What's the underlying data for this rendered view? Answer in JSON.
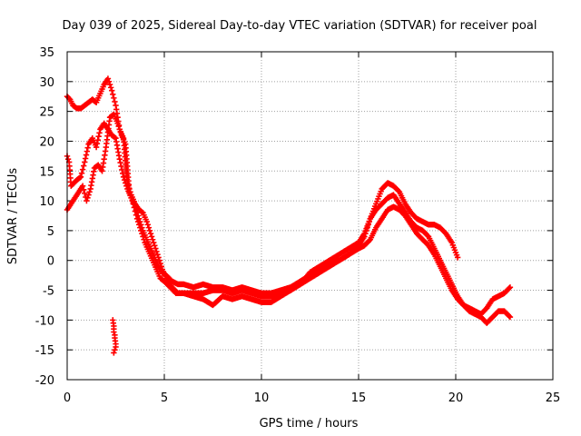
{
  "chart_data": {
    "type": "scatter",
    "title": "Day 039 of 2025, Sidereal Day-to-day VTEC variation (SDTVAR) for receiver poal",
    "xlabel": "GPS time / hours",
    "ylabel": "SDTVAR / TECUs",
    "xlim": [
      0,
      25
    ],
    "ylim": [
      -20,
      35
    ],
    "xticks": [
      0,
      5,
      10,
      15,
      20,
      25
    ],
    "yticks": [
      -20,
      -15,
      -10,
      -5,
      0,
      5,
      10,
      15,
      20,
      25,
      30,
      35
    ],
    "grid": true,
    "marker": "+",
    "series": [
      {
        "name": "trace-a",
        "color": "#ff0000",
        "x": [
          0.0,
          0.1,
          0.2,
          0.35,
          0.5,
          0.7,
          0.9,
          1.1,
          1.3,
          1.5,
          1.7,
          1.9,
          2.1,
          2.3,
          2.5,
          2.7,
          2.9,
          3.1,
          3.3,
          3.5,
          3.7,
          3.9,
          4.1,
          4.3,
          4.5,
          4.7,
          4.9,
          5.1,
          5.4,
          5.7,
          6.0,
          6.5,
          7.0,
          7.5,
          8.0,
          8.5,
          9.0,
          9.5,
          10.0,
          10.5,
          11.0,
          11.5,
          12.0,
          12.5,
          13.0,
          13.5,
          14.0,
          14.5,
          15.0,
          15.3,
          15.6,
          15.9,
          16.2,
          16.5,
          16.8,
          17.1,
          17.4,
          17.7,
          18.0,
          18.3,
          18.6,
          18.9,
          19.2,
          19.5,
          19.8,
          20.1
        ],
        "y": [
          17.5,
          16.5,
          12.5,
          13.0,
          13.5,
          14.0,
          16.5,
          19.5,
          20.5,
          19.0,
          22.0,
          23.0,
          22.0,
          21.0,
          20.5,
          17.0,
          14.0,
          12.0,
          10.5,
          9.0,
          7.0,
          5.0,
          3.5,
          2.0,
          0.5,
          -1.0,
          -2.0,
          -2.5,
          -3.5,
          -4.0,
          -4.0,
          -4.5,
          -4.0,
          -4.5,
          -4.5,
          -5.0,
          -4.5,
          -5.0,
          -5.5,
          -5.5,
          -5.0,
          -4.5,
          -3.5,
          -2.5,
          -1.5,
          -0.5,
          0.0,
          1.0,
          2.5,
          4.0,
          7.0,
          9.5,
          12.0,
          13.0,
          12.5,
          11.5,
          9.5,
          8.0,
          7.0,
          6.5,
          6.0,
          6.0,
          5.5,
          4.5,
          3.0,
          0.5
        ]
      },
      {
        "name": "trace-b",
        "color": "#ff0000",
        "x": [
          0.0,
          0.15,
          0.3,
          0.5,
          0.7,
          0.9,
          1.1,
          1.3,
          1.5,
          1.7,
          1.9,
          2.1,
          2.3,
          2.5,
          2.7,
          2.9,
          3.1,
          3.3,
          3.5,
          3.7,
          3.9,
          4.1,
          4.3,
          4.5,
          4.7,
          4.9,
          5.1,
          5.4,
          5.7,
          6.0,
          6.5,
          7.0,
          7.5,
          8.0,
          8.5,
          9.0,
          9.5,
          10.0,
          10.5,
          11.0,
          11.5,
          12.0,
          12.5,
          13.0,
          13.5,
          14.0,
          14.5,
          15.0,
          15.3,
          15.6,
          15.9,
          16.2,
          16.5,
          16.8,
          17.1,
          17.4,
          17.7,
          18.0,
          18.3,
          18.6,
          18.9,
          19.2,
          19.5,
          19.8,
          20.1,
          20.4,
          20.7,
          21.0,
          21.3,
          21.6,
          21.9,
          22.2,
          22.5,
          22.8
        ],
        "y": [
          27.5,
          27.0,
          26.0,
          25.5,
          25.5,
          26.0,
          26.5,
          27.0,
          26.5,
          28.0,
          29.5,
          30.5,
          28.5,
          26.0,
          22.0,
          20.5,
          13.0,
          11.0,
          9.5,
          8.5,
          8.0,
          6.5,
          4.5,
          2.5,
          0.5,
          -1.5,
          -3.0,
          -4.5,
          -5.5,
          -5.5,
          -6.0,
          -6.5,
          -7.5,
          -6.0,
          -6.5,
          -6.0,
          -6.5,
          -7.0,
          -7.0,
          -6.0,
          -5.0,
          -4.0,
          -3.0,
          -2.0,
          -1.0,
          0.0,
          1.0,
          2.0,
          2.5,
          3.5,
          5.5,
          7.0,
          8.5,
          9.0,
          8.5,
          7.5,
          6.0,
          4.5,
          3.5,
          2.5,
          1.0,
          -1.0,
          -3.0,
          -5.0,
          -6.5,
          -7.5,
          -8.0,
          -8.5,
          -9.0,
          -8.0,
          -6.5,
          -6.0,
          -5.5,
          -4.5
        ]
      },
      {
        "name": "trace-c",
        "color": "#ff0000",
        "x": [
          0.0,
          0.2,
          0.4,
          0.6,
          0.8,
          1.0,
          1.2,
          1.4,
          1.6,
          1.8,
          2.0,
          2.2,
          2.4,
          2.6,
          2.8,
          3.0,
          3.2,
          3.4,
          3.6,
          3.8,
          4.0,
          4.2,
          4.4,
          4.6,
          4.8,
          5.0,
          5.3,
          5.6,
          6.0,
          6.5,
          7.0,
          7.5,
          8.0,
          8.5,
          9.0,
          9.5,
          10.0,
          10.5,
          11.0,
          11.5,
          12.0,
          12.5,
          13.0,
          13.5,
          14.0,
          14.5,
          15.0,
          15.3,
          15.6,
          15.9,
          16.2,
          16.5,
          16.8,
          17.1,
          17.4,
          17.7,
          18.0,
          18.3,
          18.6,
          18.9,
          19.2,
          19.5,
          19.8,
          20.1,
          20.4,
          20.7,
          21.0,
          21.3,
          21.6,
          21.9,
          22.2,
          22.5,
          22.8
        ],
        "y": [
          8.5,
          9.5,
          10.5,
          11.5,
          12.5,
          10.0,
          12.0,
          15.5,
          16.0,
          15.0,
          19.0,
          24.0,
          24.5,
          23.0,
          21.0,
          19.5,
          11.5,
          9.5,
          7.0,
          5.0,
          3.0,
          1.5,
          0.0,
          -1.5,
          -3.0,
          -3.5,
          -4.5,
          -5.5,
          -5.5,
          -5.5,
          -5.5,
          -5.0,
          -5.0,
          -5.5,
          -5.0,
          -5.5,
          -6.0,
          -6.0,
          -5.5,
          -5.0,
          -4.0,
          -2.0,
          -1.0,
          0.0,
          1.0,
          2.0,
          3.0,
          4.5,
          7.0,
          8.5,
          9.5,
          10.5,
          11.0,
          9.5,
          8.0,
          6.5,
          5.5,
          5.0,
          4.0,
          2.0,
          0.0,
          -2.0,
          -4.0,
          -6.0,
          -7.5,
          -8.5,
          -9.0,
          -9.5,
          -10.5,
          -9.5,
          -8.5,
          -8.5,
          -9.5
        ]
      },
      {
        "name": "outlier-cluster",
        "color": "#ff0000",
        "x": [
          2.35,
          2.4,
          2.4,
          2.45,
          2.45,
          2.5,
          2.5,
          2.45,
          2.4
        ],
        "y": [
          -10.0,
          -11.0,
          -12.0,
          -12.5,
          -13.0,
          -14.0,
          -14.5,
          -15.0,
          -15.5
        ]
      }
    ]
  }
}
